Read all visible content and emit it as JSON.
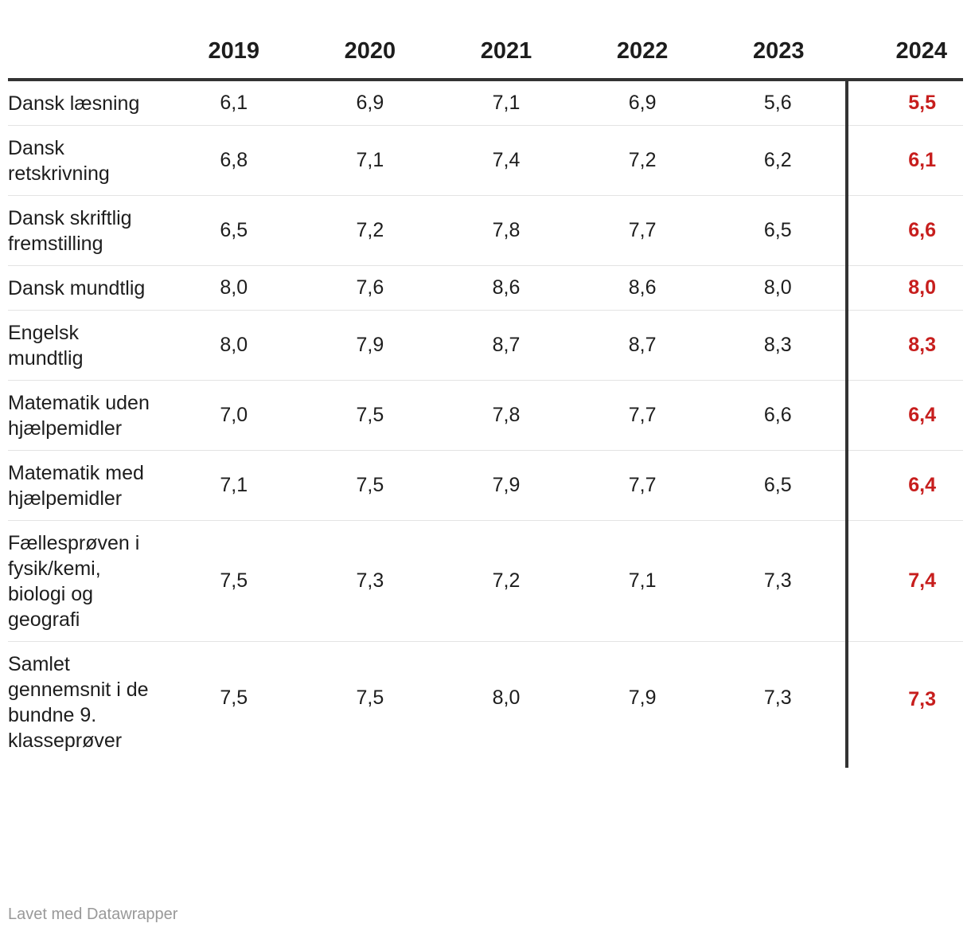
{
  "chart_data": {
    "type": "table",
    "columns": [
      "2019",
      "2020",
      "2021",
      "2022",
      "2023",
      "2024"
    ],
    "highlight_column": "2024",
    "highlight_color": "#c71e1d",
    "rows": [
      {
        "label": "Dansk læsning",
        "values": [
          "6,1",
          "6,9",
          "7,1",
          "6,9",
          "5,6",
          "5,5"
        ]
      },
      {
        "label": "Dansk retskrivning",
        "values": [
          "6,8",
          "7,1",
          "7,4",
          "7,2",
          "6,2",
          "6,1"
        ]
      },
      {
        "label": "Dansk skriftlig fremstilling",
        "values": [
          "6,5",
          "7,2",
          "7,8",
          "7,7",
          "6,5",
          "6,6"
        ]
      },
      {
        "label": "Dansk mundtlig",
        "values": [
          "8,0",
          "7,6",
          "8,6",
          "8,6",
          "8,0",
          "8,0"
        ]
      },
      {
        "label": "Engelsk mundtlig",
        "values": [
          "8,0",
          "7,9",
          "8,7",
          "8,7",
          "8,3",
          "8,3"
        ]
      },
      {
        "label": "Matematik uden hjælpemidler",
        "values": [
          "7,0",
          "7,5",
          "7,8",
          "7,7",
          "6,6",
          "6,4"
        ]
      },
      {
        "label": "Matematik med hjælpemidler",
        "values": [
          "7,1",
          "7,5",
          "7,9",
          "7,7",
          "6,5",
          "6,4"
        ]
      },
      {
        "label": "Fællesprøven i fysik/kemi, biologi og geografi",
        "values": [
          "7,5",
          "7,3",
          "7,2",
          "7,1",
          "7,3",
          "7,4"
        ]
      },
      {
        "label": "Samlet gennemsnit i de bundne 9. klasseprøver",
        "values": [
          "7,5",
          "7,5",
          "8,0",
          "7,9",
          "7,3",
          "7,3"
        ]
      }
    ]
  },
  "footer": {
    "credit": "Lavet med Datawrapper"
  }
}
